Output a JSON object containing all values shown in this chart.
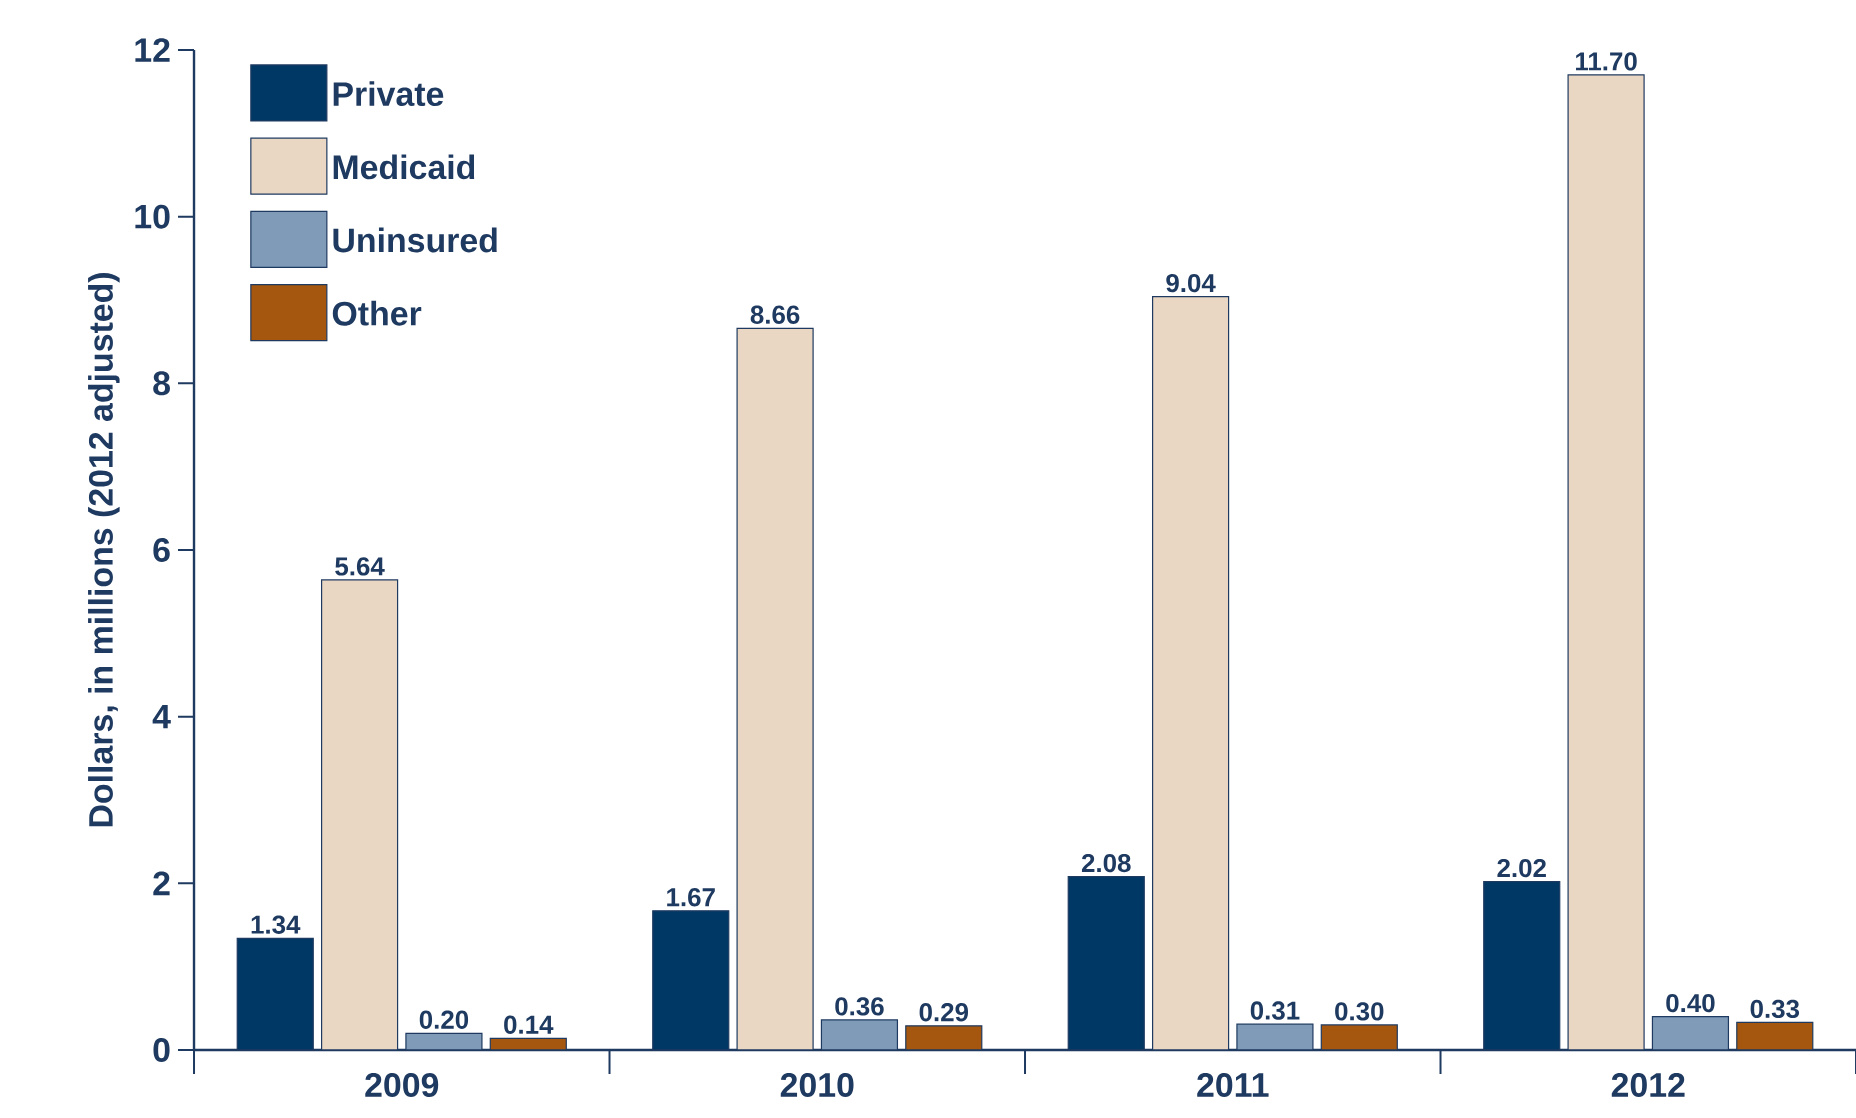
{
  "chart_data": {
    "type": "bar",
    "ylabel": "Dollars, in millions (2012 adjusted)",
    "categories": [
      "2009",
      "2010",
      "2011",
      "2012"
    ],
    "series": [
      {
        "name": "Private",
        "color": "#003865",
        "values": [
          1.34,
          1.67,
          2.08,
          2.02
        ],
        "value_labels": [
          "1.34",
          "1.67",
          "2.08",
          "2.02"
        ]
      },
      {
        "name": "Medicaid",
        "color": "#ead7c3",
        "values": [
          5.64,
          8.66,
          9.04,
          11.7
        ],
        "value_labels": [
          "5.64",
          "8.66",
          "9.04",
          "11.70"
        ]
      },
      {
        "name": "Uninsured",
        "color": "#7f9bb8",
        "values": [
          0.2,
          0.36,
          0.31,
          0.4
        ],
        "value_labels": [
          "0.20",
          "0.36",
          "0.31",
          "0.40"
        ]
      },
      {
        "name": "Other",
        "color": "#a5570f",
        "values": [
          0.14,
          0.29,
          0.3,
          0.33
        ],
        "value_labels": [
          "0.14",
          "0.29",
          "0.30",
          "0.33"
        ]
      }
    ],
    "ylim": [
      0,
      12
    ],
    "yticks": [
      0,
      2,
      4,
      6,
      8,
      10,
      12
    ],
    "legend": "top left",
    "grid": false
  }
}
